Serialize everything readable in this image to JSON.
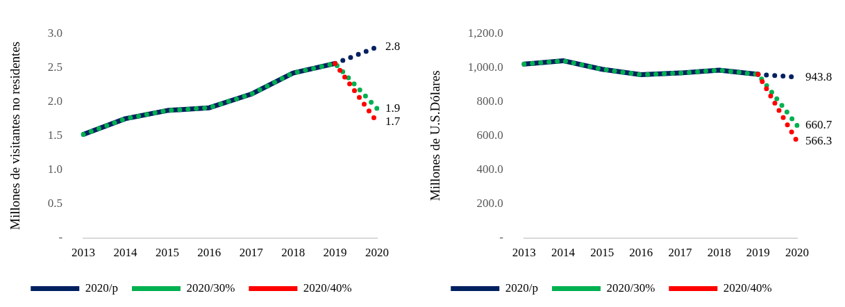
{
  "chart_data": [
    {
      "type": "line",
      "ylabel": "Millones de visitantes no residentes",
      "categories": [
        "2013",
        "2014",
        "2015",
        "2016",
        "2017",
        "2018",
        "2019",
        "2020"
      ],
      "ylim": [
        0,
        3
      ],
      "yticks": [
        {
          "value": 0,
          "label": "-"
        },
        {
          "value": 0.5,
          "label": "0.5"
        },
        {
          "value": 1,
          "label": "1.0"
        },
        {
          "value": 1.5,
          "label": "1.5"
        },
        {
          "value": 2,
          "label": "2.0"
        },
        {
          "value": 2.5,
          "label": "2.5"
        },
        {
          "value": 3,
          "label": "3.0"
        }
      ],
      "grid": false,
      "legend": "bottom",
      "marker": "none",
      "series": [
        {
          "name": "2020/p",
          "color": "#002060",
          "line_style": "solid",
          "values": [
            1.52,
            1.75,
            1.87,
            1.91,
            2.11,
            2.42,
            2.56,
            null
          ]
        },
        {
          "color": "#002060",
          "line_style": "dotted",
          "values": [
            null,
            null,
            null,
            null,
            null,
            null,
            2.56,
            2.8
          ],
          "value_labels": [
            null,
            null,
            null,
            null,
            null,
            null,
            null,
            "2.8"
          ]
        },
        {
          "name": "2020/30%",
          "color": "#00b050",
          "line_style": "dotted",
          "values": [
            1.52,
            1.75,
            1.87,
            1.91,
            2.11,
            2.42,
            2.56,
            1.9
          ],
          "value_labels": [
            null,
            null,
            null,
            null,
            null,
            null,
            null,
            "1.9"
          ]
        },
        {
          "name": "2020/40%",
          "color": "#ff0000",
          "line_style": "dotted",
          "values": [
            null,
            null,
            null,
            null,
            null,
            null,
            2.56,
            1.7
          ],
          "value_labels": [
            null,
            null,
            null,
            null,
            null,
            null,
            null,
            "1.7"
          ]
        }
      ]
    },
    {
      "type": "line",
      "ylabel": "Millones de U.S.Dólares",
      "categories": [
        "2013",
        "2014",
        "2015",
        "2016",
        "2017",
        "2018",
        "2019",
        "2020"
      ],
      "ylim": [
        0,
        1200
      ],
      "yticks": [
        {
          "value": 0,
          "label": "-"
        },
        {
          "value": 200,
          "label": "200.0"
        },
        {
          "value": 400,
          "label": "400.0"
        },
        {
          "value": 600,
          "label": "600.0"
        },
        {
          "value": 800,
          "label": "800.0"
        },
        {
          "value": 1000,
          "label": "1,000.0"
        },
        {
          "value": 1200,
          "label": "1,200.0"
        }
      ],
      "grid": false,
      "legend": "bottom",
      "marker": "none",
      "series": [
        {
          "name": "2020/p",
          "color": "#002060",
          "line_style": "solid",
          "values": [
            1020,
            1040,
            990,
            958,
            968,
            985,
            960,
            null
          ]
        },
        {
          "color": "#002060",
          "line_style": "dotted",
          "values": [
            null,
            null,
            null,
            null,
            null,
            null,
            960,
            943.8
          ],
          "value_labels": [
            null,
            null,
            null,
            null,
            null,
            null,
            null,
            "943.8"
          ]
        },
        {
          "name": "2020/30%",
          "color": "#00b050",
          "line_style": "dotted",
          "values": [
            1020,
            1040,
            990,
            958,
            968,
            985,
            960,
            660.7
          ],
          "value_labels": [
            null,
            null,
            null,
            null,
            null,
            null,
            null,
            "660.7"
          ]
        },
        {
          "name": "2020/40%",
          "color": "#ff0000",
          "line_style": "dotted",
          "values": [
            null,
            null,
            null,
            null,
            null,
            null,
            960,
            566.3
          ],
          "value_labels": [
            null,
            null,
            null,
            null,
            null,
            null,
            null,
            "566.3"
          ]
        }
      ]
    }
  ]
}
